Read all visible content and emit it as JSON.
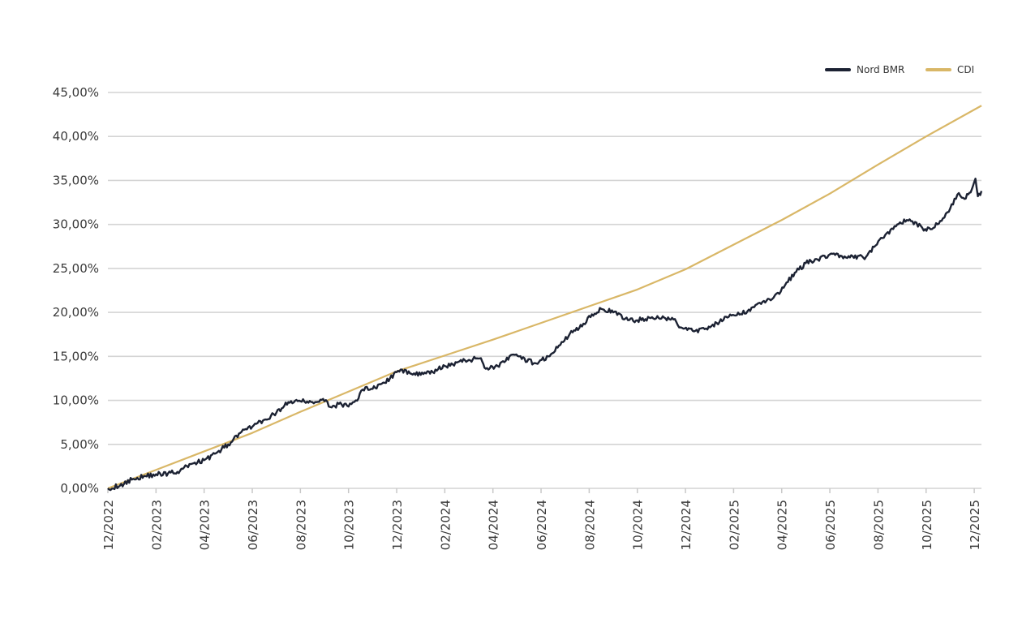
{
  "chart_data": {
    "type": "line",
    "title": "",
    "xlabel": "",
    "ylabel": "",
    "ylim": [
      0,
      45
    ],
    "y_ticks": [
      {
        "value": 0,
        "label": "0,00%"
      },
      {
        "value": 5,
        "label": "5,00%"
      },
      {
        "value": 10,
        "label": "10,00%"
      },
      {
        "value": 15,
        "label": "15,00%"
      },
      {
        "value": 20,
        "label": "20,00%"
      },
      {
        "value": 25,
        "label": "25,00%"
      },
      {
        "value": 30,
        "label": "30,00%"
      },
      {
        "value": 35,
        "label": "35,00%"
      },
      {
        "value": 40,
        "label": "40,00%"
      },
      {
        "value": 45,
        "label": "45,00%"
      }
    ],
    "x_range_months": [
      0,
      36.3
    ],
    "x_ticks": [
      {
        "month": 0,
        "label": "12/2022"
      },
      {
        "month": 2,
        "label": "02/2023"
      },
      {
        "month": 4,
        "label": "04/2023"
      },
      {
        "month": 6,
        "label": "06/2023"
      },
      {
        "month": 8,
        "label": "08/2023"
      },
      {
        "month": 10,
        "label": "10/2023"
      },
      {
        "month": 12,
        "label": "12/2023"
      },
      {
        "month": 14,
        "label": "02/2024"
      },
      {
        "month": 16,
        "label": "04/2024"
      },
      {
        "month": 18,
        "label": "06/2024"
      },
      {
        "month": 20,
        "label": "08/2024"
      },
      {
        "month": 22,
        "label": "10/2024"
      },
      {
        "month": 24,
        "label": "12/2024"
      },
      {
        "month": 26,
        "label": "02/2025"
      },
      {
        "month": 28,
        "label": "04/2025"
      },
      {
        "month": 30,
        "label": "06/2025"
      },
      {
        "month": 32,
        "label": "08/2025"
      },
      {
        "month": 34,
        "label": "10/2025"
      },
      {
        "month": 36,
        "label": "12/2025"
      }
    ],
    "legend_position": "top-right",
    "series": [
      {
        "name": "Nord BMR",
        "color": "#1c2233",
        "points": [
          [
            0,
            0
          ],
          [
            0.5,
            0.3
          ],
          [
            1,
            1.0
          ],
          [
            1.5,
            1.4
          ],
          [
            2,
            1.6
          ],
          [
            2.5,
            1.7
          ],
          [
            3,
            2.0
          ],
          [
            3.5,
            2.8
          ],
          [
            4,
            3.2
          ],
          [
            4.5,
            4.0
          ],
          [
            5,
            5.0
          ],
          [
            5.5,
            6.3
          ],
          [
            6,
            7.0
          ],
          [
            6.5,
            7.8
          ],
          [
            7,
            8.6
          ],
          [
            7.5,
            9.8
          ],
          [
            8,
            9.9
          ],
          [
            8.5,
            9.8
          ],
          [
            9,
            9.9
          ],
          [
            9.3,
            9.2
          ],
          [
            9.6,
            9.6
          ],
          [
            10,
            9.3
          ],
          [
            10.3,
            10.0
          ],
          [
            10.7,
            11.5
          ],
          [
            11,
            11.3
          ],
          [
            11.5,
            12.0
          ],
          [
            12,
            13.2
          ],
          [
            12.5,
            13.3
          ],
          [
            13,
            12.9
          ],
          [
            13.5,
            13.2
          ],
          [
            14,
            13.9
          ],
          [
            14.5,
            14.3
          ],
          [
            15,
            14.6
          ],
          [
            15.5,
            14.8
          ],
          [
            15.7,
            13.6
          ],
          [
            16.2,
            13.9
          ],
          [
            16.8,
            15.2
          ],
          [
            17.2,
            14.7
          ],
          [
            17.8,
            14.2
          ],
          [
            18.3,
            15.0
          ],
          [
            18.8,
            16.3
          ],
          [
            19.2,
            17.6
          ],
          [
            19.7,
            18.4
          ],
          [
            20,
            19.6
          ],
          [
            20.5,
            20.4
          ],
          [
            21,
            20.0
          ],
          [
            21.5,
            19.3
          ],
          [
            22,
            19.1
          ],
          [
            22.5,
            19.4
          ],
          [
            23,
            19.3
          ],
          [
            23.5,
            19.2
          ],
          [
            23.8,
            18.3
          ],
          [
            24.3,
            17.9
          ],
          [
            24.8,
            18.1
          ],
          [
            25.3,
            18.8
          ],
          [
            25.8,
            19.5
          ],
          [
            26.3,
            19.8
          ],
          [
            26.8,
            20.6
          ],
          [
            27.2,
            21.2
          ],
          [
            27.6,
            21.5
          ],
          [
            27.9,
            22.1
          ],
          [
            28.2,
            23.4
          ],
          [
            28.6,
            24.6
          ],
          [
            29,
            25.6
          ],
          [
            29.5,
            26.0
          ],
          [
            30,
            26.6
          ],
          [
            30.5,
            26.4
          ],
          [
            31,
            26.2
          ],
          [
            31.5,
            26.3
          ],
          [
            31.9,
            27.6
          ],
          [
            32.3,
            28.8
          ],
          [
            32.8,
            30.0
          ],
          [
            33.2,
            30.5
          ],
          [
            33.6,
            30.2
          ],
          [
            33.9,
            29.3
          ],
          [
            34.3,
            29.6
          ],
          [
            34.7,
            30.7
          ],
          [
            35.0,
            31.8
          ],
          [
            35.3,
            33.4
          ],
          [
            35.6,
            32.9
          ],
          [
            35.8,
            33.6
          ],
          [
            35.95,
            34.4
          ],
          [
            36.05,
            35.2
          ],
          [
            36.15,
            33.2
          ],
          [
            36.3,
            33.8
          ]
        ]
      },
      {
        "name": "CDI",
        "color": "#d9b767",
        "points": [
          [
            0,
            0
          ],
          [
            2,
            2.1
          ],
          [
            4,
            4.2
          ],
          [
            6,
            6.3
          ],
          [
            8,
            8.7
          ],
          [
            10,
            11.0
          ],
          [
            12,
            13.3
          ],
          [
            14,
            15.1
          ],
          [
            16,
            16.9
          ],
          [
            18,
            18.8
          ],
          [
            20,
            20.7
          ],
          [
            22,
            22.6
          ],
          [
            24,
            24.9
          ],
          [
            26,
            27.7
          ],
          [
            28,
            30.5
          ],
          [
            30,
            33.5
          ],
          [
            32,
            36.8
          ],
          [
            34,
            40.0
          ],
          [
            36.3,
            43.5
          ]
        ]
      }
    ]
  }
}
